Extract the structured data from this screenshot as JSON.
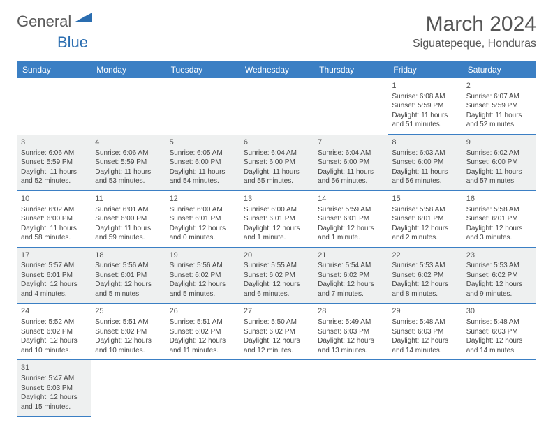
{
  "logo": {
    "part1": "General",
    "part2": "Blue"
  },
  "title": "March 2024",
  "location": "Siguatepeque, Honduras",
  "weekday_header_bg": "#3b7fc4",
  "weekdays": [
    "Sunday",
    "Monday",
    "Tuesday",
    "Wednesday",
    "Thursday",
    "Friday",
    "Saturday"
  ],
  "rows": [
    {
      "alt": false,
      "cells": [
        {
          "blank": true
        },
        {
          "blank": true
        },
        {
          "blank": true
        },
        {
          "blank": true
        },
        {
          "blank": true
        },
        {
          "day": "1",
          "sunrise": "Sunrise: 6:08 AM",
          "sunset": "Sunset: 5:59 PM",
          "daylight": "Daylight: 11 hours and 51 minutes."
        },
        {
          "day": "2",
          "sunrise": "Sunrise: 6:07 AM",
          "sunset": "Sunset: 5:59 PM",
          "daylight": "Daylight: 11 hours and 52 minutes."
        }
      ]
    },
    {
      "alt": true,
      "cells": [
        {
          "day": "3",
          "sunrise": "Sunrise: 6:06 AM",
          "sunset": "Sunset: 5:59 PM",
          "daylight": "Daylight: 11 hours and 52 minutes."
        },
        {
          "day": "4",
          "sunrise": "Sunrise: 6:06 AM",
          "sunset": "Sunset: 5:59 PM",
          "daylight": "Daylight: 11 hours and 53 minutes."
        },
        {
          "day": "5",
          "sunrise": "Sunrise: 6:05 AM",
          "sunset": "Sunset: 6:00 PM",
          "daylight": "Daylight: 11 hours and 54 minutes."
        },
        {
          "day": "6",
          "sunrise": "Sunrise: 6:04 AM",
          "sunset": "Sunset: 6:00 PM",
          "daylight": "Daylight: 11 hours and 55 minutes."
        },
        {
          "day": "7",
          "sunrise": "Sunrise: 6:04 AM",
          "sunset": "Sunset: 6:00 PM",
          "daylight": "Daylight: 11 hours and 56 minutes."
        },
        {
          "day": "8",
          "sunrise": "Sunrise: 6:03 AM",
          "sunset": "Sunset: 6:00 PM",
          "daylight": "Daylight: 11 hours and 56 minutes."
        },
        {
          "day": "9",
          "sunrise": "Sunrise: 6:02 AM",
          "sunset": "Sunset: 6:00 PM",
          "daylight": "Daylight: 11 hours and 57 minutes."
        }
      ]
    },
    {
      "alt": false,
      "cells": [
        {
          "day": "10",
          "sunrise": "Sunrise: 6:02 AM",
          "sunset": "Sunset: 6:00 PM",
          "daylight": "Daylight: 11 hours and 58 minutes."
        },
        {
          "day": "11",
          "sunrise": "Sunrise: 6:01 AM",
          "sunset": "Sunset: 6:00 PM",
          "daylight": "Daylight: 11 hours and 59 minutes."
        },
        {
          "day": "12",
          "sunrise": "Sunrise: 6:00 AM",
          "sunset": "Sunset: 6:01 PM",
          "daylight": "Daylight: 12 hours and 0 minutes."
        },
        {
          "day": "13",
          "sunrise": "Sunrise: 6:00 AM",
          "sunset": "Sunset: 6:01 PM",
          "daylight": "Daylight: 12 hours and 1 minute."
        },
        {
          "day": "14",
          "sunrise": "Sunrise: 5:59 AM",
          "sunset": "Sunset: 6:01 PM",
          "daylight": "Daylight: 12 hours and 1 minute."
        },
        {
          "day": "15",
          "sunrise": "Sunrise: 5:58 AM",
          "sunset": "Sunset: 6:01 PM",
          "daylight": "Daylight: 12 hours and 2 minutes."
        },
        {
          "day": "16",
          "sunrise": "Sunrise: 5:58 AM",
          "sunset": "Sunset: 6:01 PM",
          "daylight": "Daylight: 12 hours and 3 minutes."
        }
      ]
    },
    {
      "alt": true,
      "cells": [
        {
          "day": "17",
          "sunrise": "Sunrise: 5:57 AM",
          "sunset": "Sunset: 6:01 PM",
          "daylight": "Daylight: 12 hours and 4 minutes."
        },
        {
          "day": "18",
          "sunrise": "Sunrise: 5:56 AM",
          "sunset": "Sunset: 6:01 PM",
          "daylight": "Daylight: 12 hours and 5 minutes."
        },
        {
          "day": "19",
          "sunrise": "Sunrise: 5:56 AM",
          "sunset": "Sunset: 6:02 PM",
          "daylight": "Daylight: 12 hours and 5 minutes."
        },
        {
          "day": "20",
          "sunrise": "Sunrise: 5:55 AM",
          "sunset": "Sunset: 6:02 PM",
          "daylight": "Daylight: 12 hours and 6 minutes."
        },
        {
          "day": "21",
          "sunrise": "Sunrise: 5:54 AM",
          "sunset": "Sunset: 6:02 PM",
          "daylight": "Daylight: 12 hours and 7 minutes."
        },
        {
          "day": "22",
          "sunrise": "Sunrise: 5:53 AM",
          "sunset": "Sunset: 6:02 PM",
          "daylight": "Daylight: 12 hours and 8 minutes."
        },
        {
          "day": "23",
          "sunrise": "Sunrise: 5:53 AM",
          "sunset": "Sunset: 6:02 PM",
          "daylight": "Daylight: 12 hours and 9 minutes."
        }
      ]
    },
    {
      "alt": false,
      "cells": [
        {
          "day": "24",
          "sunrise": "Sunrise: 5:52 AM",
          "sunset": "Sunset: 6:02 PM",
          "daylight": "Daylight: 12 hours and 10 minutes."
        },
        {
          "day": "25",
          "sunrise": "Sunrise: 5:51 AM",
          "sunset": "Sunset: 6:02 PM",
          "daylight": "Daylight: 12 hours and 10 minutes."
        },
        {
          "day": "26",
          "sunrise": "Sunrise: 5:51 AM",
          "sunset": "Sunset: 6:02 PM",
          "daylight": "Daylight: 12 hours and 11 minutes."
        },
        {
          "day": "27",
          "sunrise": "Sunrise: 5:50 AM",
          "sunset": "Sunset: 6:02 PM",
          "daylight": "Daylight: 12 hours and 12 minutes."
        },
        {
          "day": "28",
          "sunrise": "Sunrise: 5:49 AM",
          "sunset": "Sunset: 6:03 PM",
          "daylight": "Daylight: 12 hours and 13 minutes."
        },
        {
          "day": "29",
          "sunrise": "Sunrise: 5:48 AM",
          "sunset": "Sunset: 6:03 PM",
          "daylight": "Daylight: 12 hours and 14 minutes."
        },
        {
          "day": "30",
          "sunrise": "Sunrise: 5:48 AM",
          "sunset": "Sunset: 6:03 PM",
          "daylight": "Daylight: 12 hours and 14 minutes."
        }
      ]
    },
    {
      "alt": true,
      "cells": [
        {
          "day": "31",
          "sunrise": "Sunrise: 5:47 AM",
          "sunset": "Sunset: 6:03 PM",
          "daylight": "Daylight: 12 hours and 15 minutes."
        },
        {
          "blank": true
        },
        {
          "blank": true
        },
        {
          "blank": true
        },
        {
          "blank": true
        },
        {
          "blank": true
        },
        {
          "blank": true
        }
      ]
    }
  ]
}
